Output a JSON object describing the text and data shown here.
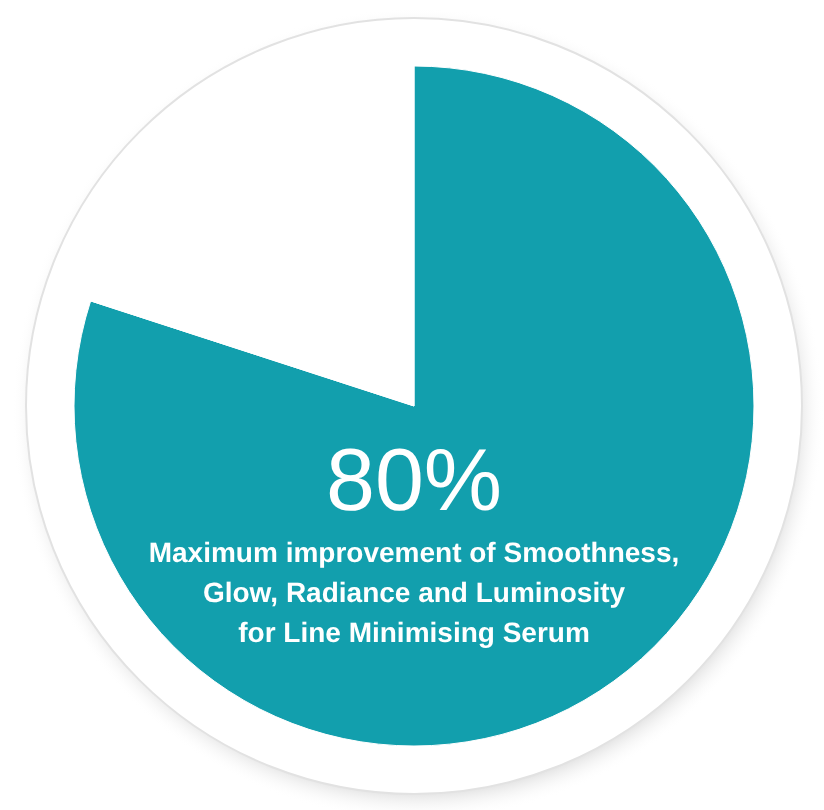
{
  "chart_data": {
    "type": "pie",
    "categories": [
      null,
      null
    ],
    "values": [
      80,
      20
    ],
    "colors": [
      "#129fad",
      "#ffffff"
    ],
    "value_labels": [
      "80%",
      null
    ],
    "annotations": [
      "Maximum improvement of Smoothness,\nGlow, Radiance and Luminosity\nfor Line Minimising Serum"
    ]
  }
}
